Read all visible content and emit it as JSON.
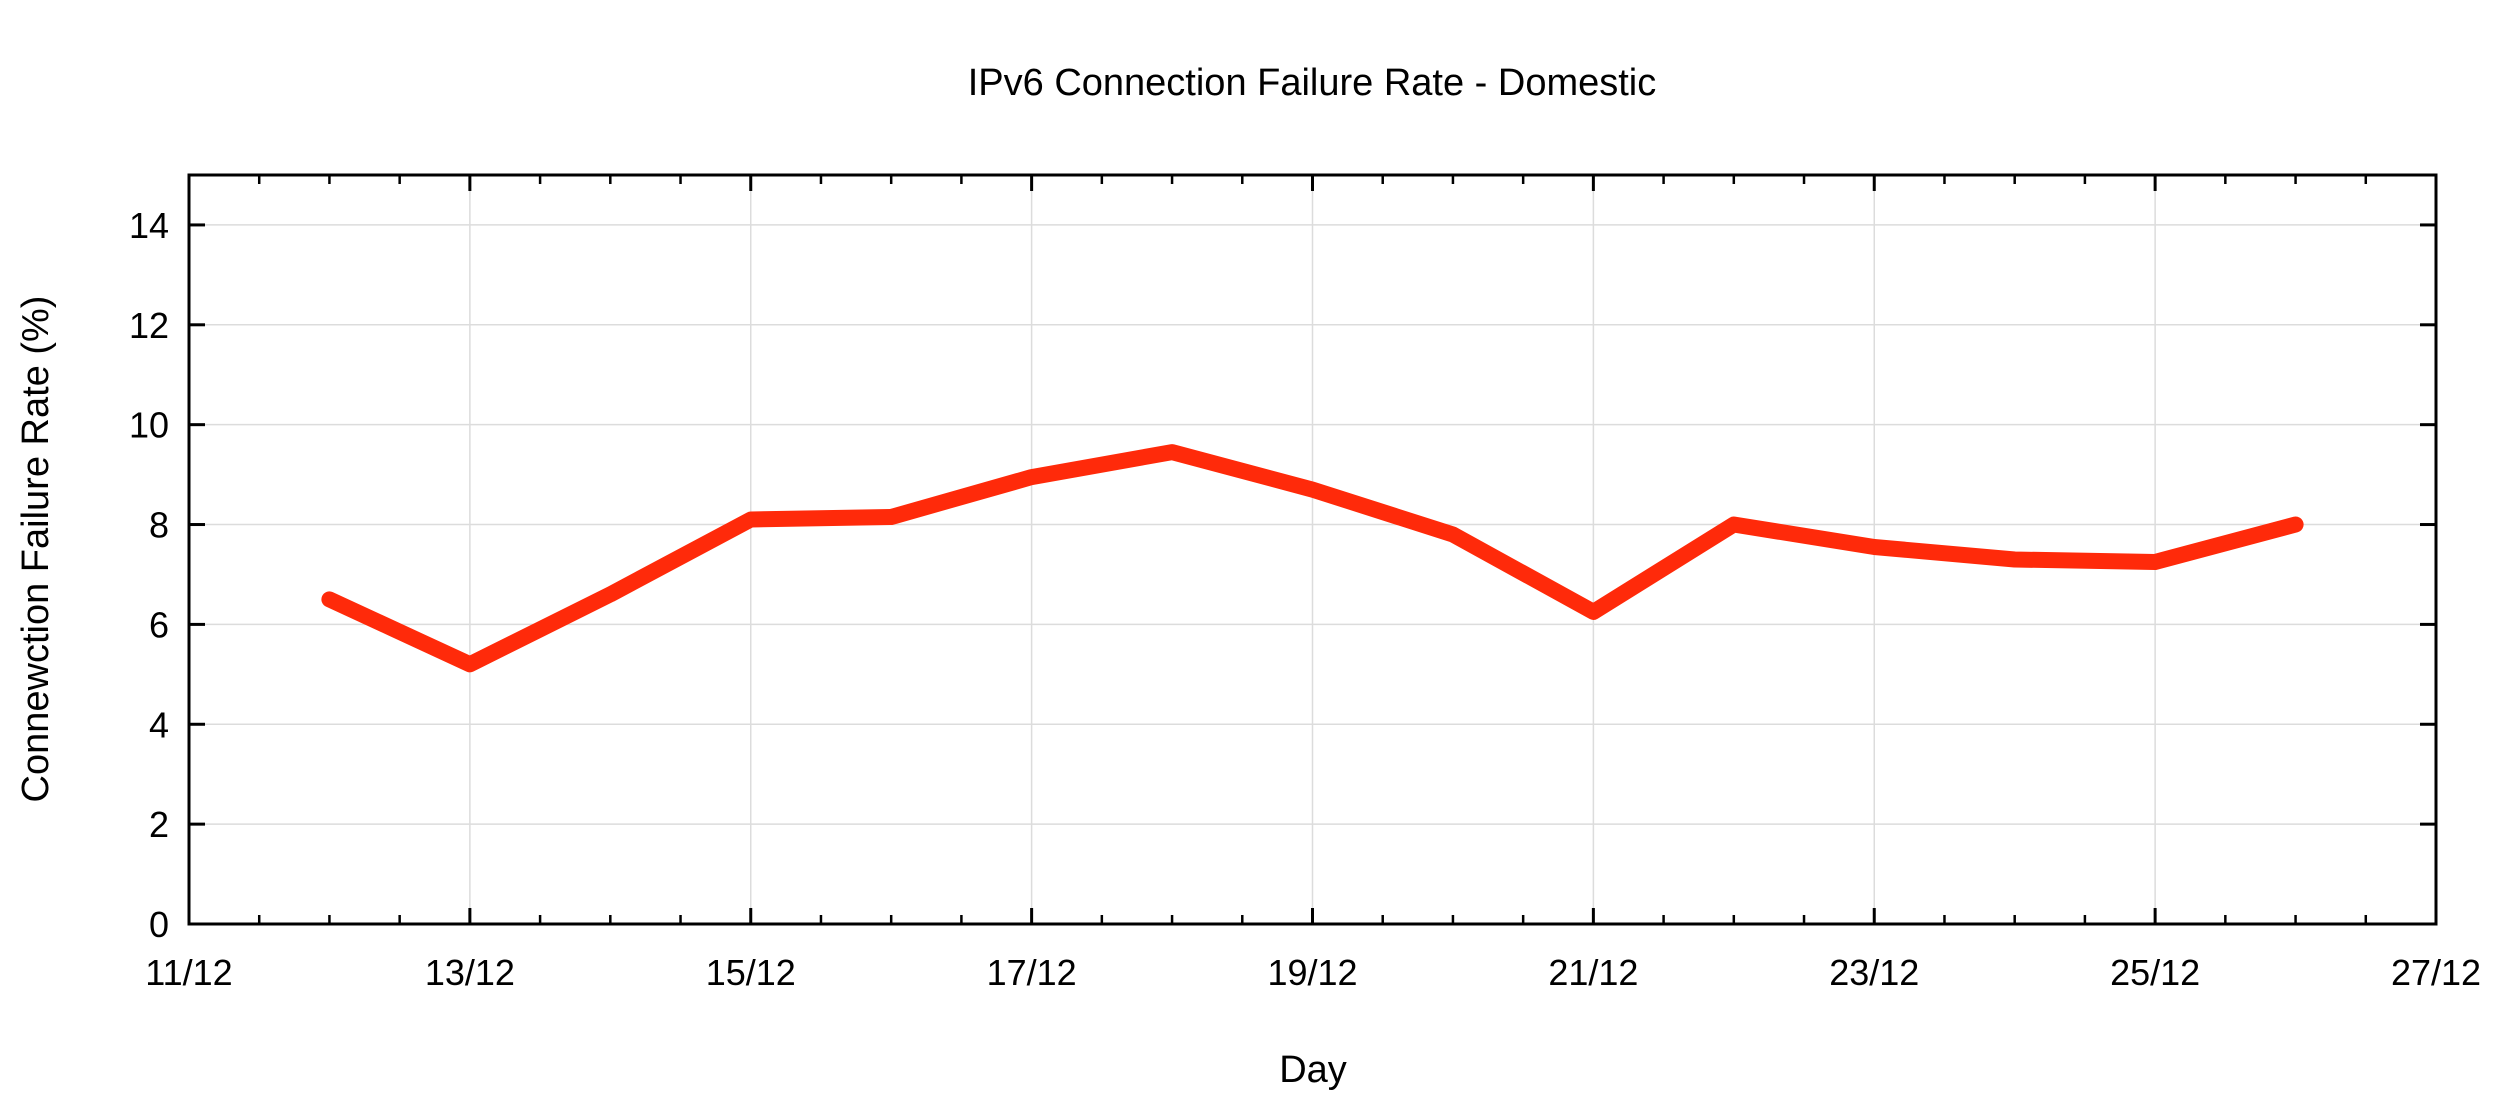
{
  "chart_data": {
    "type": "line",
    "title": "IPv6 Connection Failure Rate - Domestic",
    "xlabel": "Day",
    "ylabel": "Connewction Failure Rate (%)",
    "x_ticks": [
      "11/12",
      "13/12",
      "15/12",
      "17/12",
      "19/12",
      "21/12",
      "23/12",
      "25/12",
      "27/12"
    ],
    "y_ticks": [
      "0",
      "2",
      "4",
      "6",
      "8",
      "10",
      "12",
      "14"
    ],
    "xlim": [
      "11/12",
      "27/12"
    ],
    "ylim": [
      0,
      15
    ],
    "grid": true,
    "series": [
      {
        "color": "#ff2a0a",
        "x": [
          "12/12",
          "13/12",
          "14/12",
          "15/12",
          "16/12",
          "17/12",
          "18/12",
          "19/12",
          "20/12",
          "21/12",
          "22/12",
          "23/12",
          "24/12",
          "25/12",
          "26/12"
        ],
        "values": [
          6.5,
          5.2,
          6.6,
          8.1,
          8.15,
          8.95,
          9.45,
          8.7,
          7.8,
          6.25,
          8.0,
          7.55,
          7.3,
          7.25,
          8.0
        ]
      }
    ]
  }
}
